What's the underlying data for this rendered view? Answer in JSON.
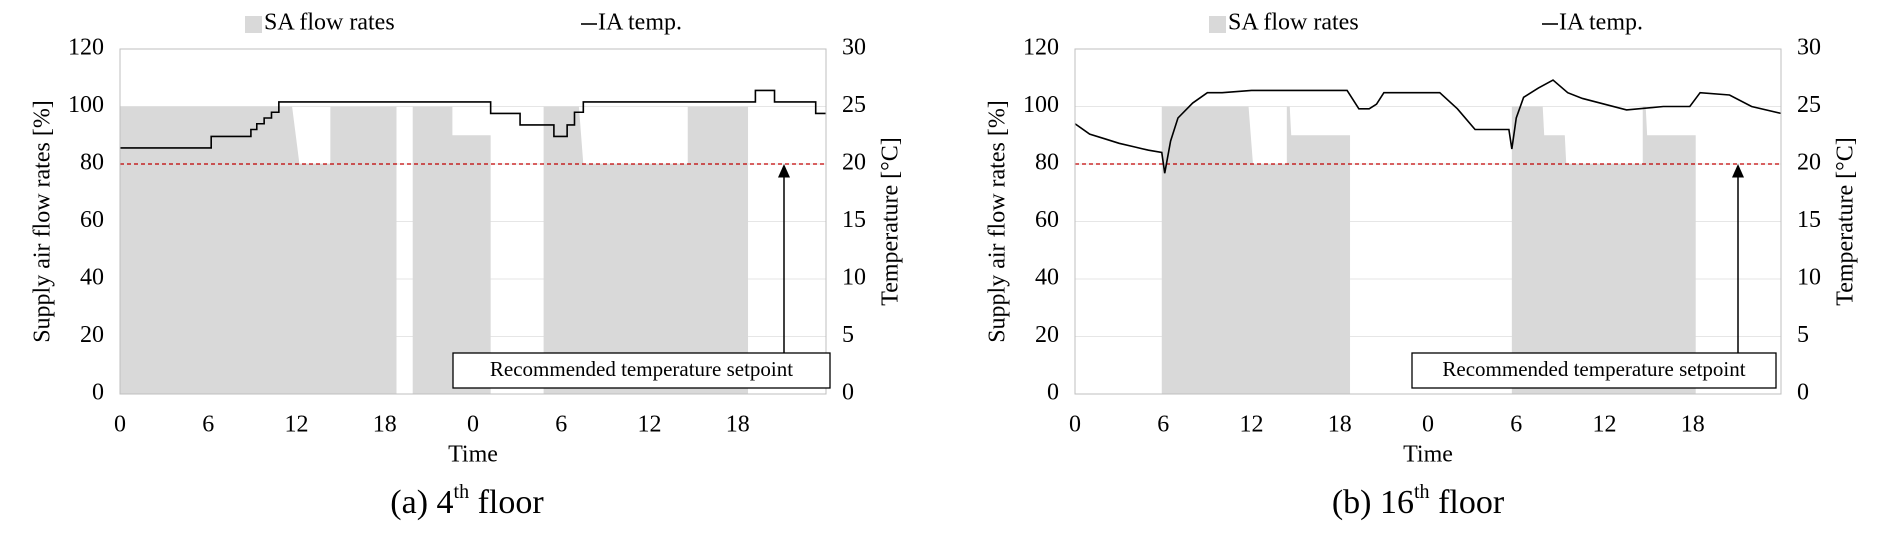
{
  "chart_data": [
    {
      "type": "area_line",
      "caption": {
        "prefix": "(a) 4",
        "sup": "th",
        "suffix": " floor"
      },
      "x_label": "Time",
      "y_label": "Supply air flow rates [%]",
      "y2_label": "Temperature [°C]",
      "xlim": [
        0,
        48
      ],
      "xticks": [
        0,
        6,
        12,
        18,
        {
          "value": 24,
          "label": "0"
        },
        {
          "value": 30,
          "label": "6"
        },
        {
          "value": 36,
          "label": "12"
        },
        {
          "value": 42,
          "label": "18"
        }
      ],
      "ylim": [
        0,
        120
      ],
      "yticks": [
        0,
        20,
        40,
        60,
        80,
        100,
        120
      ],
      "y2lim": [
        0,
        30
      ],
      "y2ticks": [
        0,
        5,
        10,
        15,
        20,
        25,
        30
      ],
      "grid": true,
      "setpoint_line": {
        "value": 20,
        "axis": "y2",
        "color": "#c00000"
      },
      "annotation": "Recommended temperature setpoint",
      "series": [
        {
          "name": "SA flow rates",
          "kind": "area",
          "color": "#d9d9d9",
          "x": [
            0,
            11.7,
            12.2,
            14.3,
            14.3,
            18.8,
            18.8,
            19.9,
            19.9,
            22.6,
            22.6,
            25.2,
            25.2,
            28.8,
            28.8,
            31.2,
            31.5,
            38.6,
            38.6,
            42.7,
            42.7,
            48
          ],
          "values": [
            100,
            100,
            80,
            80,
            100,
            100,
            0,
            0,
            100,
            100,
            90,
            90,
            0,
            0,
            100,
            100,
            80,
            80,
            100,
            100,
            0,
            0
          ]
        },
        {
          "name": "IA temp.",
          "kind": "line",
          "color": "#000000",
          "axis": "y2",
          "x": [
            0,
            6.2,
            6.2,
            8.9,
            8.9,
            9.3,
            9.3,
            9.8,
            9.8,
            10.3,
            10.3,
            10.8,
            10.8,
            25.2,
            25.2,
            27.2,
            27.2,
            29.5,
            29.5,
            30.4,
            30.4,
            30.9,
            30.9,
            31.5,
            31.5,
            43.2,
            43.2,
            44.5,
            44.5,
            47.3,
            47.3,
            48
          ],
          "values": [
            21.4,
            21.4,
            22.4,
            22.4,
            23,
            23,
            23.5,
            23.5,
            24,
            24,
            24.5,
            24.5,
            25.4,
            25.4,
            24.4,
            24.4,
            23.4,
            23.4,
            22.4,
            22.4,
            23.4,
            23.4,
            24.5,
            24.5,
            25.4,
            25.4,
            26.4,
            26.4,
            25.4,
            25.4,
            24.4,
            24.4
          ]
        }
      ]
    },
    {
      "type": "area_line",
      "caption": {
        "prefix": "(b) 16",
        "sup": "th",
        "suffix": " floor"
      },
      "x_label": "Time",
      "y_label": "Supply air flow rates [%]",
      "y2_label": "Temperature [°C]",
      "xlim": [
        0,
        48
      ],
      "xticks": [
        0,
        6,
        12,
        18,
        {
          "value": 24,
          "label": "0"
        },
        {
          "value": 30,
          "label": "6"
        },
        {
          "value": 36,
          "label": "12"
        },
        {
          "value": 42,
          "label": "18"
        }
      ],
      "ylim": [
        0,
        120
      ],
      "yticks": [
        0,
        20,
        40,
        60,
        80,
        100,
        120
      ],
      "y2lim": [
        0,
        30
      ],
      "y2ticks": [
        0,
        5,
        10,
        15,
        20,
        25,
        30
      ],
      "grid": true,
      "setpoint_line": {
        "value": 20,
        "axis": "y2",
        "color": "#c00000"
      },
      "annotation": "Recommended temperature setpoint",
      "series": [
        {
          "name": "SA flow rates",
          "kind": "area",
          "color": "#d9d9d9",
          "x": [
            0,
            5.9,
            5.9,
            11.8,
            12.1,
            14.4,
            14.4,
            14.6,
            14.7,
            18.7,
            18.7,
            29.7,
            29.7,
            31.8,
            31.9,
            33.3,
            33.4,
            38.6,
            38.6,
            38.8,
            38.9,
            42.2,
            42.2,
            48
          ],
          "values": [
            0,
            0,
            100,
            100,
            80,
            80,
            100,
            100,
            90,
            90,
            0,
            0,
            100,
            100,
            90,
            90,
            80,
            80,
            100,
            100,
            90,
            90,
            0,
            0
          ]
        },
        {
          "name": "IA temp.",
          "kind": "line",
          "color": "#000000",
          "axis": "y2",
          "x": [
            0,
            1,
            2,
            3,
            4,
            5,
            5.9,
            6.1,
            6.5,
            7,
            8,
            9,
            10,
            12,
            18.5,
            19.3,
            20,
            20.5,
            21,
            24.8,
            26,
            27.2,
            29.5,
            29.7,
            30,
            30.5,
            31.5,
            32.5,
            33.5,
            34.5,
            36,
            37.5,
            40,
            41.8,
            42.5,
            44.5,
            46,
            48
          ],
          "values": [
            23.5,
            22.6,
            22.2,
            21.8,
            21.5,
            21.2,
            21,
            19.2,
            22,
            24,
            25.3,
            26.2,
            26.2,
            26.4,
            26.4,
            24.8,
            24.8,
            25.2,
            26.2,
            26.2,
            24.8,
            23,
            23,
            21.3,
            24,
            25.8,
            26.6,
            27.3,
            26.2,
            25.7,
            25.2,
            24.7,
            25,
            25,
            26.2,
            26,
            25,
            24.4
          ]
        }
      ]
    }
  ]
}
